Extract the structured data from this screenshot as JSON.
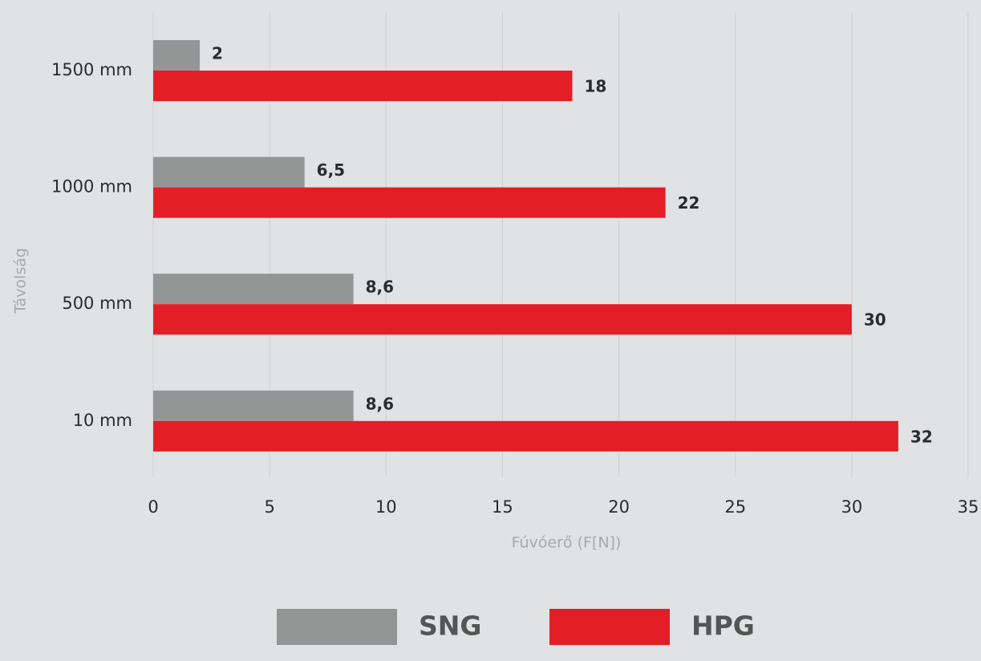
{
  "chart_data": {
    "type": "bar",
    "orientation": "horizontal",
    "x_label": "Fúvóerő (F[N])",
    "y_label": "Távolság",
    "categories": [
      "1500 mm",
      "1000 mm",
      "500 mm",
      "10 mm"
    ],
    "series": [
      {
        "name": "SNG",
        "color": "#949696",
        "values": [
          2,
          6.5,
          8.6,
          8.6
        ],
        "value_labels": [
          "2",
          "6,5",
          "8,6",
          "8,6"
        ]
      },
      {
        "name": "HPG",
        "color": "#e41e26",
        "values": [
          18,
          22,
          30,
          32
        ]
      }
    ],
    "xlim": [
      0,
      35
    ],
    "xticks": [
      0,
      5,
      10,
      15,
      20,
      25,
      30,
      35
    ],
    "grid": true
  }
}
